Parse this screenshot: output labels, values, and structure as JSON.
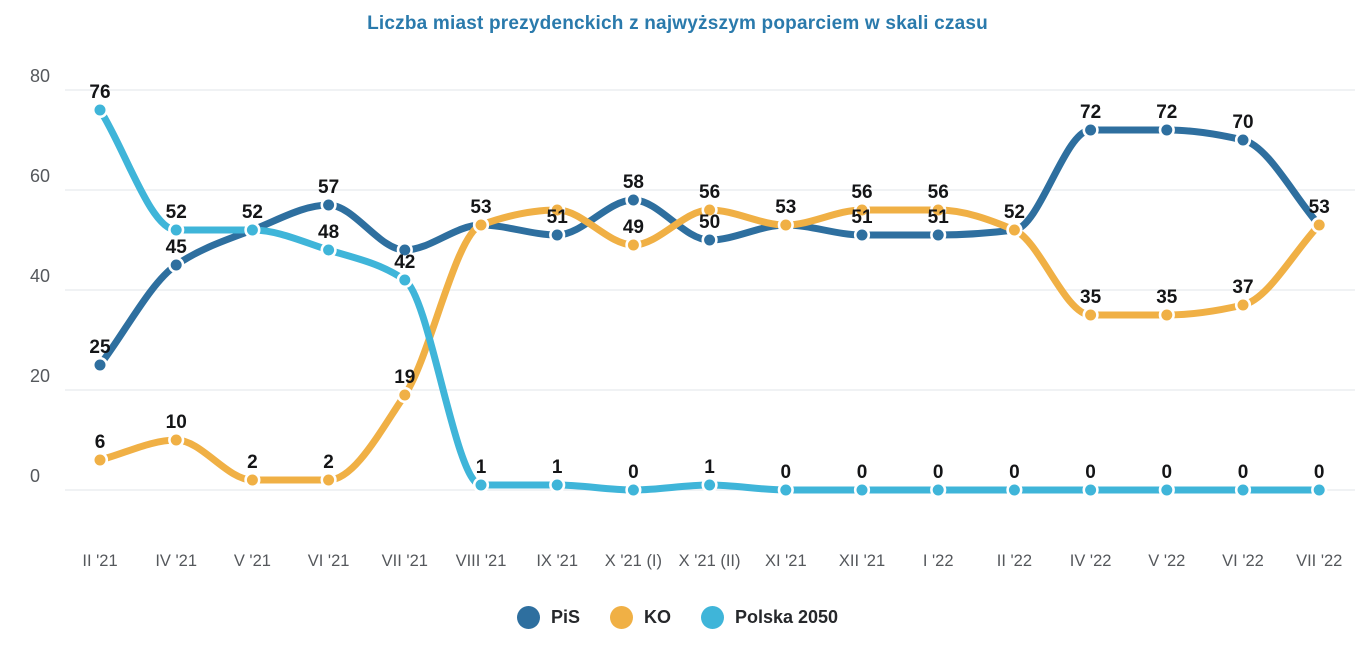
{
  "page": {
    "background": "#ffffff"
  },
  "chart_data": {
    "type": "line",
    "title": "Liczba miast prezydenckich z najwyższym poparciem w skali czasu",
    "title_color": "#2A7AAC",
    "categories": [
      "II '21",
      "IV '21",
      "V '21",
      "VI '21",
      "VII '21",
      "VIII '21",
      "IX '21",
      "X '21 (I)",
      "X '21 (II)",
      "XI '21",
      "XII '21",
      "I '22",
      "II '22",
      "IV '22",
      "V '22",
      "VI '22",
      "VII '22"
    ],
    "series": [
      {
        "name": "PiS",
        "color": "#2E6F9F",
        "values": [
          25,
          45,
          52,
          57,
          48,
          53,
          51,
          58,
          50,
          53,
          51,
          51,
          52,
          72,
          72,
          70,
          53
        ],
        "hidden_label_indices": [
          2,
          4,
          5,
          9,
          12,
          16
        ]
      },
      {
        "name": "KO",
        "color": "#F0B045",
        "values": [
          6,
          10,
          2,
          2,
          19,
          53,
          56,
          49,
          56,
          53,
          56,
          56,
          52,
          35,
          35,
          37,
          53
        ],
        "hidden_label_indices": [
          6
        ]
      },
      {
        "name": "Polska 2050",
        "color": "#3FB5D9",
        "values": [
          76,
          52,
          52,
          48,
          42,
          1,
          1,
          0,
          1,
          0,
          0,
          0,
          0,
          0,
          0,
          0,
          0
        ],
        "hidden_label_indices": []
      }
    ],
    "y_ticks": [
      0,
      20,
      40,
      60,
      80
    ],
    "ylim": [
      0,
      80
    ],
    "grid": true,
    "grid_color": "#E7E9EE",
    "axis_label_color": "#55585C",
    "point_label_color": "#141517",
    "legend_position": "bottom",
    "legend": [
      "PiS",
      "KO",
      "Polska 2050"
    ]
  }
}
